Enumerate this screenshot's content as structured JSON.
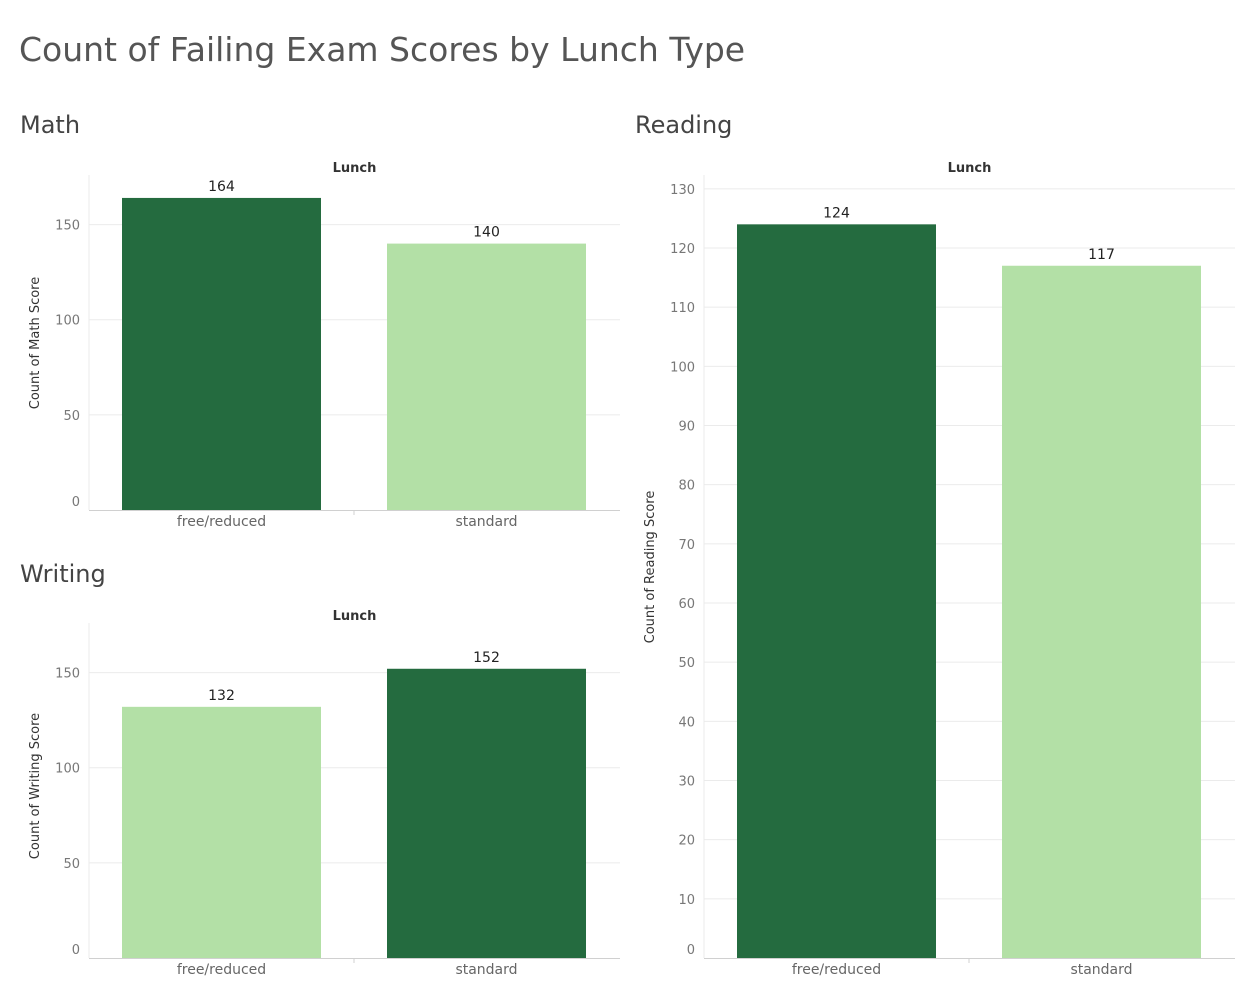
{
  "title": "Count of Failing Exam Scores by Lunch Type",
  "colors": {
    "dark": "#246B3F",
    "light": "#B3E0A6",
    "grid": "#EBEBEB",
    "axis": "#D0D0D0"
  },
  "chart_data": [
    {
      "id": "math",
      "type": "bar",
      "title": "Math",
      "column_header": "Lunch",
      "ylabel": "Count of Math Score",
      "categories": [
        "free/reduced",
        "standard"
      ],
      "values": [
        164,
        140
      ],
      "data_labels": [
        "164",
        "140"
      ],
      "bar_colors": [
        "#246B3F",
        "#B3E0A6"
      ],
      "ylim": [
        0,
        175
      ],
      "yticks": [
        0,
        50,
        100,
        150
      ],
      "ytick_labels": [
        "0",
        "50",
        "100",
        "150"
      ],
      "grid": true
    },
    {
      "id": "writing",
      "type": "bar",
      "title": "Writing",
      "column_header": "Lunch",
      "ylabel": "Count of Writing Score",
      "categories": [
        "free/reduced",
        "standard"
      ],
      "values": [
        132,
        152
      ],
      "data_labels": [
        "132",
        "152"
      ],
      "bar_colors": [
        "#B3E0A6",
        "#246B3F"
      ],
      "ylim": [
        0,
        175
      ],
      "yticks": [
        0,
        50,
        100,
        150
      ],
      "ytick_labels": [
        "0",
        "50",
        "100",
        "150"
      ],
      "grid": true
    },
    {
      "id": "reading",
      "type": "bar",
      "title": "Reading",
      "column_header": "Lunch",
      "ylabel": "Count of Reading Score",
      "categories": [
        "free/reduced",
        "standard"
      ],
      "values": [
        124,
        117
      ],
      "data_labels": [
        "124",
        "117"
      ],
      "bar_colors": [
        "#246B3F",
        "#B3E0A6"
      ],
      "ylim": [
        0,
        132
      ],
      "yticks": [
        0,
        10,
        20,
        30,
        40,
        50,
        60,
        70,
        80,
        90,
        100,
        110,
        120,
        130
      ],
      "ytick_labels": [
        "0",
        "10",
        "20",
        "30",
        "40",
        "50",
        "60",
        "70",
        "80",
        "90",
        "100",
        "110",
        "120",
        "130"
      ],
      "grid": true
    }
  ]
}
